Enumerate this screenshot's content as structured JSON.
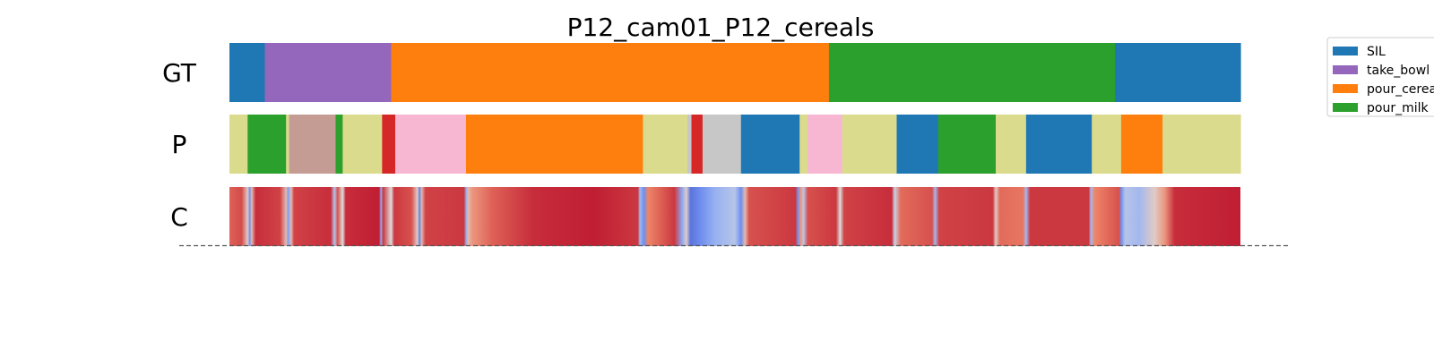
{
  "chart_data": {
    "type": "heatmap",
    "title": "P12_cam01_P12_cereals",
    "x_range": [
      0,
      1
    ],
    "rows": [
      {
        "label": "GT",
        "kind": "segments",
        "segments": [
          {
            "start": 0.0,
            "end": 0.035,
            "action": "SIL"
          },
          {
            "start": 0.035,
            "end": 0.16,
            "action": "take_bowl"
          },
          {
            "start": 0.16,
            "end": 0.593,
            "action": "pour_cereals"
          },
          {
            "start": 0.593,
            "end": 0.876,
            "action": "pour_milk"
          },
          {
            "start": 0.876,
            "end": 1.0,
            "action": "SIL"
          }
        ]
      },
      {
        "label": "P",
        "kind": "segments",
        "segments": [
          {
            "start": 0.0,
            "end": 0.018,
            "color": "#dbdb8d"
          },
          {
            "start": 0.018,
            "end": 0.056,
            "color": "#2ca02c"
          },
          {
            "start": 0.056,
            "end": 0.059,
            "color": "#dbdb8d"
          },
          {
            "start": 0.059,
            "end": 0.105,
            "color": "#c49c94"
          },
          {
            "start": 0.105,
            "end": 0.112,
            "color": "#2ca02c"
          },
          {
            "start": 0.112,
            "end": 0.151,
            "color": "#dbdb8d"
          },
          {
            "start": 0.151,
            "end": 0.164,
            "color": "#d62728"
          },
          {
            "start": 0.164,
            "end": 0.234,
            "color": "#f7b6d2"
          },
          {
            "start": 0.234,
            "end": 0.409,
            "color": "#ff7f0e"
          },
          {
            "start": 0.409,
            "end": 0.453,
            "color": "#dbdb8d"
          },
          {
            "start": 0.453,
            "end": 0.457,
            "color": "#c7c7c7"
          },
          {
            "start": 0.457,
            "end": 0.468,
            "color": "#d62728"
          },
          {
            "start": 0.468,
            "end": 0.506,
            "color": "#c7c7c7"
          },
          {
            "start": 0.506,
            "end": 0.564,
            "color": "#1f77b4"
          },
          {
            "start": 0.564,
            "end": 0.572,
            "color": "#dbdb8d"
          },
          {
            "start": 0.572,
            "end": 0.606,
            "color": "#f7b6d2"
          },
          {
            "start": 0.606,
            "end": 0.66,
            "color": "#dbdb8d"
          },
          {
            "start": 0.66,
            "end": 0.701,
            "color": "#1f77b4"
          },
          {
            "start": 0.701,
            "end": 0.758,
            "color": "#2ca02c"
          },
          {
            "start": 0.758,
            "end": 0.788,
            "color": "#dbdb8d"
          },
          {
            "start": 0.788,
            "end": 0.853,
            "color": "#1f77b4"
          },
          {
            "start": 0.853,
            "end": 0.882,
            "color": "#dbdb8d"
          },
          {
            "start": 0.882,
            "end": 0.923,
            "color": "#ff7f0e"
          },
          {
            "start": 0.923,
            "end": 1.0,
            "color": "#dbdb8d"
          }
        ]
      },
      {
        "label": "C",
        "kind": "confidence",
        "colormap": "coolwarm",
        "points": [
          [
            0.0,
            0.82
          ],
          [
            0.012,
            0.86
          ],
          [
            0.018,
            0.55
          ],
          [
            0.02,
            0.2
          ],
          [
            0.022,
            0.6
          ],
          [
            0.026,
            0.92
          ],
          [
            0.05,
            0.88
          ],
          [
            0.056,
            0.6
          ],
          [
            0.058,
            0.25
          ],
          [
            0.061,
            0.6
          ],
          [
            0.064,
            0.88
          ],
          [
            0.1,
            0.92
          ],
          [
            0.104,
            0.4
          ],
          [
            0.107,
            0.85
          ],
          [
            0.112,
            0.5
          ],
          [
            0.115,
            0.92
          ],
          [
            0.148,
            0.95
          ],
          [
            0.15,
            0.3
          ],
          [
            0.152,
            0.9
          ],
          [
            0.16,
            0.5
          ],
          [
            0.163,
            0.9
          ],
          [
            0.18,
            0.85
          ],
          [
            0.186,
            0.55
          ],
          [
            0.188,
            0.15
          ],
          [
            0.19,
            0.6
          ],
          [
            0.194,
            0.88
          ],
          [
            0.232,
            0.9
          ],
          [
            0.234,
            0.3
          ],
          [
            0.236,
            0.6
          ],
          [
            0.24,
            0.7
          ],
          [
            0.26,
            0.82
          ],
          [
            0.3,
            0.92
          ],
          [
            0.36,
            0.95
          ],
          [
            0.404,
            0.9
          ],
          [
            0.406,
            0.35
          ],
          [
            0.41,
            0.2
          ],
          [
            0.414,
            0.75
          ],
          [
            0.44,
            0.9
          ],
          [
            0.448,
            0.3
          ],
          [
            0.452,
            0.55
          ],
          [
            0.456,
            0.12
          ],
          [
            0.466,
            0.2
          ],
          [
            0.48,
            0.32
          ],
          [
            0.5,
            0.4
          ],
          [
            0.506,
            0.2
          ],
          [
            0.51,
            0.6
          ],
          [
            0.514,
            0.85
          ],
          [
            0.56,
            0.9
          ],
          [
            0.562,
            0.2
          ],
          [
            0.565,
            0.7
          ],
          [
            0.568,
            0.4
          ],
          [
            0.572,
            0.85
          ],
          [
            0.6,
            0.9
          ],
          [
            0.604,
            0.5
          ],
          [
            0.608,
            0.88
          ],
          [
            0.655,
            0.92
          ],
          [
            0.658,
            0.45
          ],
          [
            0.664,
            0.8
          ],
          [
            0.695,
            0.85
          ],
          [
            0.698,
            0.35
          ],
          [
            0.702,
            0.88
          ],
          [
            0.755,
            0.9
          ],
          [
            0.758,
            0.55
          ],
          [
            0.762,
            0.8
          ],
          [
            0.785,
            0.78
          ],
          [
            0.788,
            0.35
          ],
          [
            0.792,
            0.9
          ],
          [
            0.85,
            0.9
          ],
          [
            0.852,
            0.35
          ],
          [
            0.856,
            0.75
          ],
          [
            0.88,
            0.85
          ],
          [
            0.882,
            0.2
          ],
          [
            0.886,
            0.4
          ],
          [
            0.9,
            0.35
          ],
          [
            0.915,
            0.55
          ],
          [
            0.925,
            0.7
          ],
          [
            0.935,
            0.92
          ],
          [
            1.0,
            0.95
          ]
        ]
      }
    ],
    "legend": {
      "position": "top-right",
      "entries": [
        {
          "label": "SIL",
          "color": "#1f77b4"
        },
        {
          "label": "take_bowl",
          "color": "#9467bd"
        },
        {
          "label": "pour_cereals",
          "color": "#ff7f0e"
        },
        {
          "label": "pour_milk",
          "color": "#2ca02c"
        }
      ]
    },
    "grid": false
  }
}
